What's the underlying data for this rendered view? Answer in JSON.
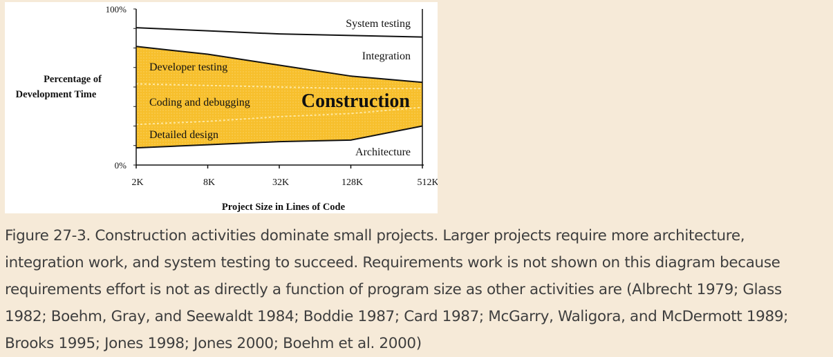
{
  "chart_data": {
    "type": "area",
    "ylabel": [
      "Percentage of",
      "Development Time"
    ],
    "xlabel": "Project Size in Lines of Code",
    "x_categories": [
      "2K",
      "8K",
      "32K",
      "128K",
      "512K"
    ],
    "y_ticks": [
      "0%",
      "100%"
    ],
    "ylim": [
      0,
      100
    ],
    "boundaries": [
      {
        "name": "architecture-top",
        "values": [
          11,
          13,
          15,
          16,
          25
        ]
      },
      {
        "name": "design-coding-divider",
        "values": [
          26,
          28,
          31,
          33,
          37
        ]
      },
      {
        "name": "coding-testing-divider",
        "values": [
          52,
          51,
          50,
          49,
          49
        ]
      },
      {
        "name": "developer-testing-top",
        "values": [
          76,
          71,
          64,
          57,
          53
        ]
      },
      {
        "name": "integration-top",
        "values": [
          88,
          86,
          84,
          83,
          82
        ]
      }
    ],
    "regions": [
      {
        "label": "System testing"
      },
      {
        "label": "Integration"
      },
      {
        "label": "Developer testing"
      },
      {
        "label": "Coding and debugging"
      },
      {
        "label": "Construction"
      },
      {
        "label": "Detailed design"
      },
      {
        "label": "Architecture"
      }
    ],
    "colors": {
      "construction": "#f7bf2c",
      "construction_dots": "#fde7a0",
      "line": "#111111"
    }
  },
  "caption": "Figure 27-3. Construction activities dominate small projects. Larger projects require more architecture, integration work, and system testing to succeed. Requirements work is not shown on this diagram because requirements effort is not as directly a function of program size as other activities are (Albrecht 1979; Glass 1982; Boehm, Gray, and Seewaldt 1984; Boddie 1987; Card 1987; McGarry, Waligora, and McDermott 1989; Brooks 1995; Jones 1998; Jones 2000; Boehm et al. 2000)"
}
